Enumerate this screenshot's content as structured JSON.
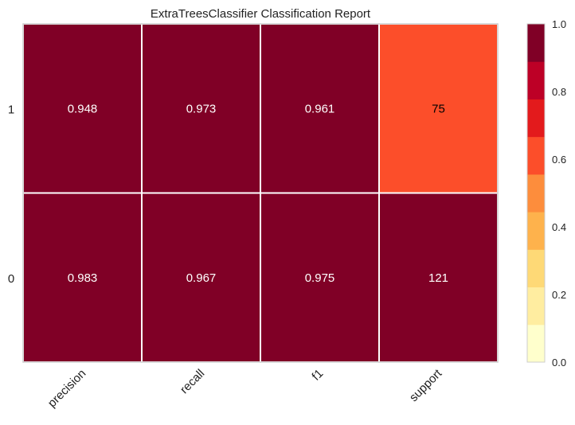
{
  "chart_data": {
    "type": "heatmap",
    "title": "ExtraTreesClassifier Classification Report",
    "columns": [
      "precision",
      "recall",
      "f1",
      "support"
    ],
    "rows": [
      "1",
      "0"
    ],
    "values": [
      [
        0.948,
        0.973,
        0.961,
        0.567
      ],
      [
        0.983,
        0.967,
        0.975,
        0.917
      ]
    ],
    "cell_labels": [
      [
        "0.948",
        "0.973",
        "0.961",
        "75"
      ],
      [
        "0.983",
        "0.967",
        "0.975",
        "121"
      ]
    ],
    "colorbar": {
      "range": [
        0.0,
        1.0
      ],
      "ticks": [
        "0.0",
        "0.2",
        "0.4",
        "0.6",
        "0.8",
        "1.0"
      ],
      "bins": 9,
      "colormap": "YlOrRd"
    },
    "grid": false,
    "colors": {
      "scale": [
        "#ffffcc",
        "#ffeda0",
        "#fed976",
        "#feb24c",
        "#fd8d3c",
        "#fc4e2a",
        "#e31a1c",
        "#bd0026",
        "#800026"
      ],
      "text_dark": "#000000",
      "text_light": "#ffffff",
      "frame": "#cccccc"
    }
  }
}
